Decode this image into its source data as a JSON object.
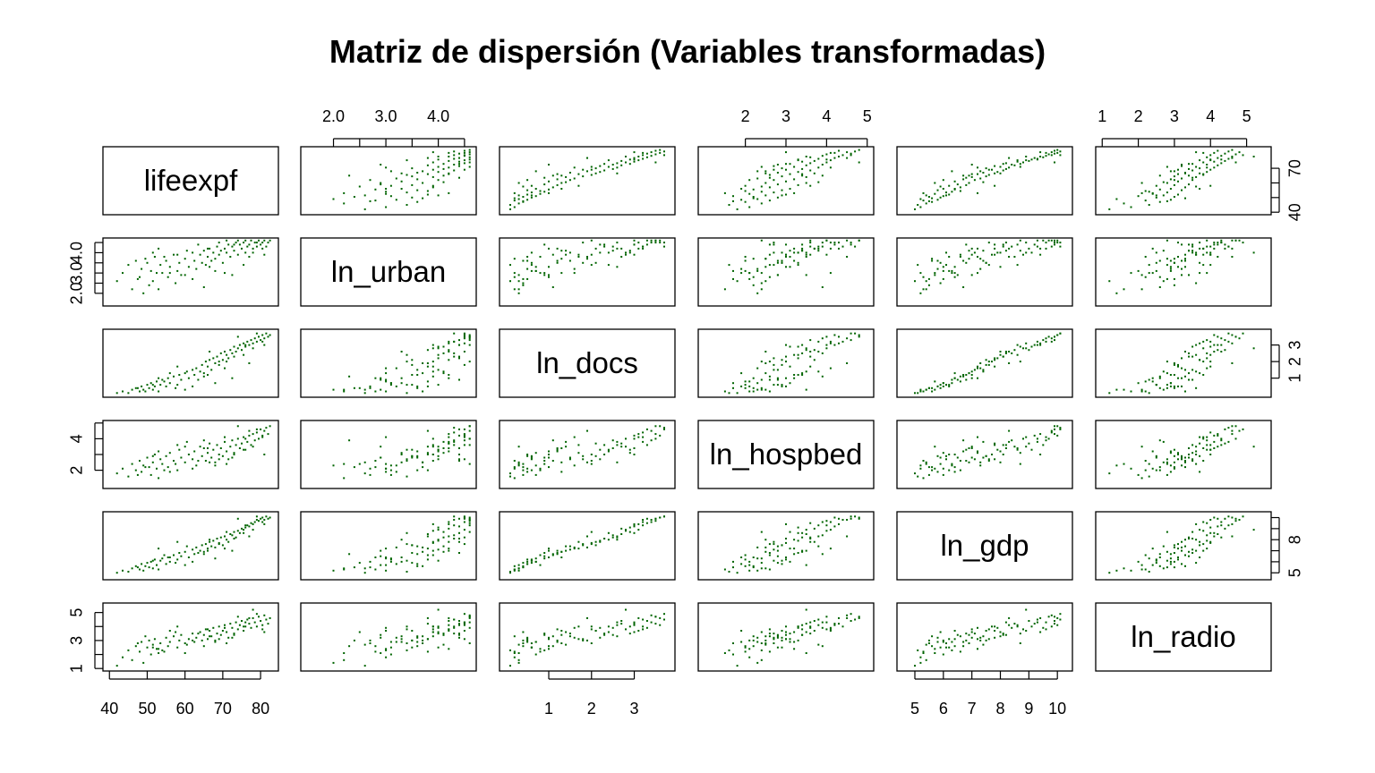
{
  "title": "Matriz de dispersión (Variables transformadas)",
  "point_color": "#006400",
  "chart_data": {
    "type": "scatter",
    "kind": "scatterplot-matrix",
    "variables": [
      {
        "name": "lifeexpf",
        "range": [
          40,
          83
        ],
        "ticks": [
          "40",
          "50",
          "60",
          "70",
          "80"
        ],
        "tick_values": [
          40,
          50,
          60,
          70,
          80
        ],
        "axis_ticks": [
          "40",
          "70"
        ],
        "axis_tick_values": [
          40,
          70
        ],
        "axis_minor_values": [
          50,
          60
        ]
      },
      {
        "name": "ln_urban",
        "range": [
          1.5,
          4.6
        ],
        "ticks": [
          "2.0",
          "3.0",
          "4.0"
        ],
        "tick_values": [
          2.0,
          3.0,
          4.0
        ],
        "minor_values": [
          2.5,
          3.5,
          4.5
        ]
      },
      {
        "name": "ln_docs",
        "range": [
          0.0,
          3.8
        ],
        "ticks": [
          "1",
          "2",
          "3"
        ],
        "tick_values": [
          1,
          2,
          3
        ]
      },
      {
        "name": "ln_hospbed",
        "range": [
          1.0,
          5.0
        ],
        "ticks": [
          "2",
          "3",
          "4",
          "5"
        ],
        "tick_values": [
          2,
          3,
          4,
          5
        ],
        "axis_ticks": [
          "2",
          "4"
        ],
        "axis_tick_values": [
          2,
          4
        ],
        "axis_minor_values": [
          3,
          5
        ]
      },
      {
        "name": "ln_gdp",
        "range": [
          4.6,
          10.3
        ],
        "ticks": [
          "5",
          "6",
          "7",
          "8",
          "9",
          "10"
        ],
        "tick_values": [
          5,
          6,
          7,
          8,
          9,
          10
        ],
        "axis_ticks": [
          "5",
          "8"
        ],
        "axis_tick_values": [
          5,
          8
        ],
        "axis_minor_values": [
          6,
          7,
          9,
          10
        ]
      },
      {
        "name": "ln_radio",
        "range": [
          1.0,
          5.5
        ],
        "ticks": [
          "1",
          "2",
          "3",
          "4",
          "5"
        ],
        "tick_values": [
          1,
          2,
          3,
          4,
          5
        ],
        "axis_ticks": [
          "1",
          "3",
          "5"
        ],
        "axis_tick_values": [
          1,
          3,
          5
        ],
        "axis_minor_values": [
          2,
          4
        ]
      }
    ],
    "observations": [
      [
        42.0,
        2.6,
        0.1,
        1.8,
        5.0,
        1.2
      ],
      [
        43.5,
        3.0,
        0.2,
        2.1,
        5.2,
        1.8
      ],
      [
        45.0,
        3.4,
        0.1,
        1.6,
        5.1,
        2.3
      ],
      [
        46.0,
        2.2,
        0.3,
        2.4,
        5.4,
        1.6
      ],
      [
        47.0,
        3.6,
        0.4,
        2.0,
        5.6,
        2.6
      ],
      [
        48.0,
        2.8,
        0.2,
        2.6,
        5.3,
        2.2
      ],
      [
        48.5,
        3.2,
        0.5,
        1.9,
        5.8,
        2.9
      ],
      [
        49.0,
        2.0,
        0.3,
        2.3,
        5.2,
        1.4
      ],
      [
        50.0,
        3.5,
        0.6,
        2.8,
        5.9,
        2.5
      ],
      [
        50.5,
        2.4,
        0.4,
        2.2,
        5.5,
        3.0
      ],
      [
        51.0,
        3.1,
        0.7,
        1.7,
        6.0,
        2.0
      ],
      [
        51.5,
        2.6,
        0.3,
        2.5,
        5.4,
        2.7
      ],
      [
        52.0,
        3.8,
        0.5,
        3.0,
        6.2,
        3.1
      ],
      [
        52.5,
        3.0,
        0.8,
        2.1,
        5.7,
        2.4
      ],
      [
        53.0,
        2.2,
        0.2,
        1.5,
        5.3,
        2.1
      ],
      [
        53.5,
        3.4,
        0.6,
        2.7,
        6.1,
        2.8
      ],
      [
        54.0,
        3.0,
        0.9,
        2.4,
        6.3,
        2.3
      ],
      [
        55.0,
        3.6,
        0.5,
        2.9,
        5.8,
        3.2
      ],
      [
        55.5,
        2.8,
        1.0,
        2.2,
        6.4,
        2.6
      ],
      [
        56.0,
        3.3,
        0.7,
        3.1,
        6.0,
        2.9
      ],
      [
        57.0,
        3.9,
        1.1,
        2.6,
        6.6,
        3.3
      ],
      [
        58.0,
        3.1,
        0.6,
        2.0,
        6.2,
        2.5
      ],
      [
        58.5,
        3.5,
        1.2,
        3.3,
        6.8,
        3.0
      ],
      [
        59.0,
        2.9,
        0.9,
        2.8,
        6.5,
        3.4
      ],
      [
        60.0,
        3.7,
        1.3,
        2.5,
        6.9,
        2.8
      ],
      [
        61.0,
        3.3,
        1.0,
        3.0,
        6.4,
        3.1
      ],
      [
        62.0,
        4.0,
        1.5,
        2.7,
        7.1,
        3.5
      ],
      [
        62.5,
        3.6,
        1.2,
        3.2,
        6.7,
        2.9
      ],
      [
        63.0,
        3.2,
        1.6,
        2.3,
        7.3,
        3.2
      ],
      [
        64.0,
        3.9,
        1.4,
        3.5,
        7.0,
        3.6
      ],
      [
        64.5,
        3.5,
        1.8,
        2.9,
        7.5,
        3.0
      ],
      [
        65.0,
        4.1,
        1.3,
        3.4,
        6.9,
        3.4
      ],
      [
        65.5,
        3.4,
        2.0,
        2.6,
        7.6,
        3.8
      ],
      [
        66.0,
        3.8,
        1.7,
        3.1,
        7.2,
        3.1
      ],
      [
        66.5,
        4.2,
        2.1,
        3.7,
        7.8,
        3.7
      ],
      [
        67.0,
        3.6,
        1.5,
        2.8,
        7.4,
        3.3
      ],
      [
        67.5,
        4.0,
        2.2,
        3.3,
        7.9,
        3.9
      ],
      [
        68.0,
        3.7,
        1.9,
        2.5,
        7.3,
        3.0
      ],
      [
        68.5,
        4.3,
        2.3,
        3.6,
        8.1,
        3.5
      ],
      [
        69.0,
        3.9,
        2.0,
        3.0,
        7.7,
        4.0
      ],
      [
        69.5,
        4.1,
        2.5,
        3.4,
        8.2,
        3.4
      ],
      [
        70.0,
        3.5,
        2.1,
        2.9,
        7.5,
        3.7
      ],
      [
        70.5,
        4.2,
        2.6,
        3.8,
        8.3,
        4.1
      ],
      [
        71.0,
        4.0,
        2.4,
        3.2,
        8.0,
        3.6
      ],
      [
        71.5,
        4.4,
        2.2,
        2.7,
        7.8,
        3.2
      ],
      [
        72.0,
        3.8,
        2.7,
        3.5,
        8.5,
        4.2
      ],
      [
        72.5,
        4.3,
        2.5,
        3.9,
        8.4,
        3.9
      ],
      [
        73.0,
        4.1,
        2.9,
        3.1,
        8.7,
        3.5
      ],
      [
        73.5,
        4.5,
        2.6,
        3.6,
        8.2,
        4.3
      ],
      [
        74.0,
        3.9,
        2.8,
        4.0,
        8.8,
        3.8
      ],
      [
        74.5,
        4.4,
        3.0,
        3.4,
        8.6,
        4.1
      ],
      [
        75.0,
        4.2,
        2.7,
        3.7,
        9.0,
        4.4
      ],
      [
        75.5,
        4.5,
        3.1,
        4.1,
        8.9,
        3.7
      ],
      [
        76.0,
        4.0,
        2.9,
        3.3,
        9.1,
        4.0
      ],
      [
        76.5,
        4.3,
        3.2,
        3.8,
        9.3,
        4.5
      ],
      [
        77.0,
        4.4,
        3.0,
        4.2,
        9.2,
        4.2
      ],
      [
        77.5,
        4.6,
        3.3,
        3.6,
        9.5,
        3.9
      ],
      [
        78.0,
        4.2,
        3.1,
        4.3,
        9.4,
        4.6
      ],
      [
        78.5,
        4.5,
        3.4,
        3.9,
        9.6,
        4.3
      ],
      [
        79.0,
        4.3,
        3.2,
        4.4,
        9.8,
        4.0
      ],
      [
        79.5,
        4.6,
        3.5,
        4.0,
        9.7,
        4.7
      ],
      [
        80.0,
        4.4,
        3.3,
        4.6,
        9.9,
        4.4
      ],
      [
        80.5,
        4.5,
        3.6,
        4.2,
        10.0,
        4.1
      ],
      [
        81.0,
        4.6,
        3.4,
        4.5,
        9.8,
        4.8
      ],
      [
        81.5,
        4.3,
        3.7,
        4.7,
        10.1,
        4.5
      ],
      [
        82.0,
        4.5,
        3.5,
        4.3,
        9.9,
        4.2
      ],
      [
        82.5,
        4.6,
        3.6,
        4.8,
        10.0,
        4.6
      ],
      [
        80.5,
        4.2,
        3.2,
        4.1,
        9.6,
        3.8
      ],
      [
        79.0,
        4.5,
        3.7,
        4.6,
        10.1,
        4.9
      ],
      [
        76.0,
        4.6,
        3.0,
        4.0,
        9.3,
        4.3
      ],
      [
        73.0,
        4.4,
        2.3,
        3.0,
        8.1,
        3.4
      ],
      [
        69.0,
        4.5,
        1.8,
        2.7,
        7.6,
        3.1
      ],
      [
        66.0,
        4.2,
        1.2,
        3.4,
        7.0,
        3.8
      ],
      [
        63.5,
        4.4,
        0.9,
        2.6,
        6.8,
        3.5
      ],
      [
        60.5,
        4.1,
        1.4,
        3.8,
        7.4,
        2.7
      ],
      [
        57.5,
        2.5,
        0.4,
        2.4,
        5.9,
        3.6
      ],
      [
        54.5,
        3.8,
        0.8,
        2.0,
        6.6,
        2.2
      ],
      [
        51.5,
        4.0,
        0.6,
        2.9,
        6.1,
        2.5
      ],
      [
        49.5,
        3.7,
        0.2,
        2.2,
        5.6,
        3.3
      ],
      [
        47.5,
        2.7,
        0.4,
        1.7,
        5.5,
        2.8
      ],
      [
        72.5,
        2.9,
        1.0,
        2.8,
        7.0,
        3.2
      ],
      [
        68.0,
        3.1,
        0.7,
        2.3,
        6.3,
        2.9
      ],
      [
        75.5,
        3.4,
        2.4,
        3.3,
        8.6,
        4.0
      ],
      [
        77.0,
        3.8,
        1.9,
        4.5,
        8.3,
        4.6
      ],
      [
        70.5,
        3.0,
        1.6,
        4.1,
        7.2,
        3.9
      ],
      [
        65.0,
        2.3,
        1.1,
        3.9,
        6.7,
        2.6
      ],
      [
        62.0,
        2.7,
        0.5,
        2.1,
        6.0,
        3.0
      ],
      [
        58.0,
        3.9,
        1.7,
        3.6,
        7.8,
        4.0
      ],
      [
        81.0,
        3.9,
        3.0,
        3.0,
        9.4,
        3.6
      ],
      [
        74.0,
        4.6,
        3.5,
        4.8,
        9.9,
        4.7
      ],
      [
        78.0,
        4.0,
        2.8,
        3.5,
        8.9,
        5.2
      ],
      [
        71.0,
        4.6,
        2.0,
        2.4,
        8.7,
        2.8
      ],
      [
        56.0,
        3.0,
        1.3,
        1.9,
        6.4,
        3.7
      ],
      [
        60.0,
        2.9,
        0.3,
        3.5,
        5.7,
        2.1
      ],
      [
        66.5,
        3.3,
        2.6,
        2.5,
        8.0,
        3.3
      ],
      [
        53.0,
        4.2,
        1.0,
        3.2,
        7.2,
        2.4
      ]
    ]
  }
}
